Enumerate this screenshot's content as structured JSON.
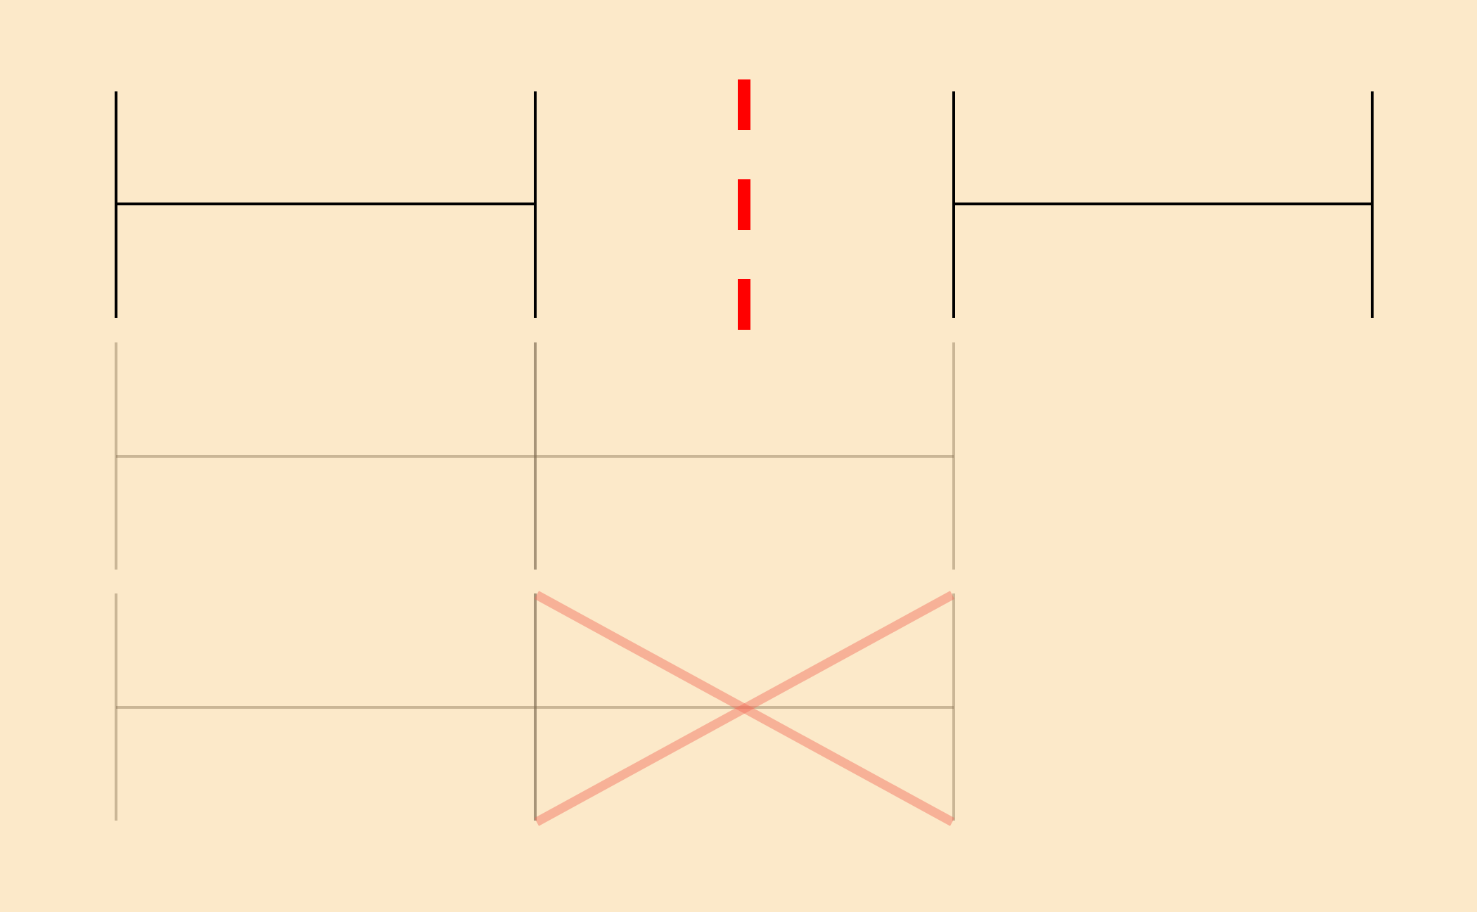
{
  "background_color": "#FCE9C9",
  "colors": {
    "solid_line": "#000000",
    "faded_line": "#7F6A4A",
    "faded_line_dark": "#6E5C42",
    "divider": "#FF0000",
    "cross": "#F26D5B"
  },
  "diagram": {
    "description_free": true,
    "rows": [
      {
        "id": "row-top",
        "style": "solid",
        "segments": [
          {
            "id": "left-segment",
            "from_column": 0,
            "to_column": 1
          },
          {
            "id": "right-segment",
            "from_column": 3,
            "to_column": 4
          }
        ]
      },
      {
        "id": "row-middle",
        "style": "faded",
        "segments": [
          {
            "id": "merged-segment",
            "from_column": 0,
            "to_column": 2
          }
        ]
      },
      {
        "id": "row-bottom",
        "style": "faded",
        "segments": [
          {
            "id": "merged-segment-crossed",
            "from_column": 0,
            "to_column": 2
          }
        ],
        "crossed_span": {
          "from_column": 1,
          "to_column": 2
        }
      }
    ],
    "divider": {
      "style": "dashed",
      "between_columns": [
        1,
        2
      ]
    }
  }
}
